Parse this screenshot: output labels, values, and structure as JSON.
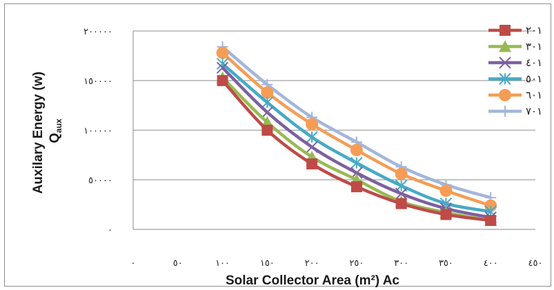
{
  "chart_data": {
    "type": "line",
    "title": "",
    "xlabel": "Solar Collector Area (m²) Ac",
    "ylabel": "Auxilary Energy  (w) Qaux",
    "x_tick_labels": [
      "٠",
      "٥٠",
      "١٠٠",
      "١٥٠",
      "٢٠٠",
      "٢٥٠",
      "٣٠٠",
      "٣٥٠",
      "٤٠٠",
      "٤٥٠"
    ],
    "y_tick_labels": [
      "٠",
      "٥٠٠٠٠",
      "١٠٠٠٠٠",
      "١٥٠٠٠٠",
      "٢٠٠٠٠٠"
    ],
    "x_ticks": [
      0,
      50,
      100,
      150,
      200,
      250,
      300,
      350,
      400,
      450
    ],
    "y_ticks": [
      0,
      50000,
      100000,
      150000,
      200000
    ],
    "xlim": [
      0,
      450
    ],
    "ylim": [
      0,
      200000
    ],
    "grid": "horizontal",
    "legend_position": "right",
    "x": [
      100,
      150,
      200,
      250,
      300,
      350,
      400
    ],
    "series": [
      {
        "name": "٢٠١",
        "color": "#be4b48",
        "marker": "square",
        "values": [
          150000,
          100000,
          66000,
          43000,
          26000,
          15000,
          9000
        ]
      },
      {
        "name": "٣٠١",
        "color": "#98b954",
        "marker": "triangle",
        "values": [
          153000,
          108000,
          73000,
          50000,
          28000,
          17000,
          9000
        ]
      },
      {
        "name": "٤٠١",
        "color": "#7d60a0",
        "marker": "x",
        "values": [
          163000,
          118000,
          83000,
          57000,
          36000,
          21000,
          12000
        ]
      },
      {
        "name": "٥٠١",
        "color": "#46aac5",
        "marker": "asterisk",
        "values": [
          167000,
          128000,
          93000,
          67000,
          44000,
          26000,
          18000
        ]
      },
      {
        "name": "٦٠١",
        "color": "#f59d56",
        "marker": "circle",
        "values": [
          178000,
          138000,
          106000,
          80000,
          56000,
          39000,
          24000
        ]
      },
      {
        "name": "٧٠١",
        "color": "#a3b6db",
        "marker": "plus",
        "values": [
          184000,
          146000,
          113000,
          88000,
          63000,
          45000,
          32000
        ]
      }
    ]
  }
}
